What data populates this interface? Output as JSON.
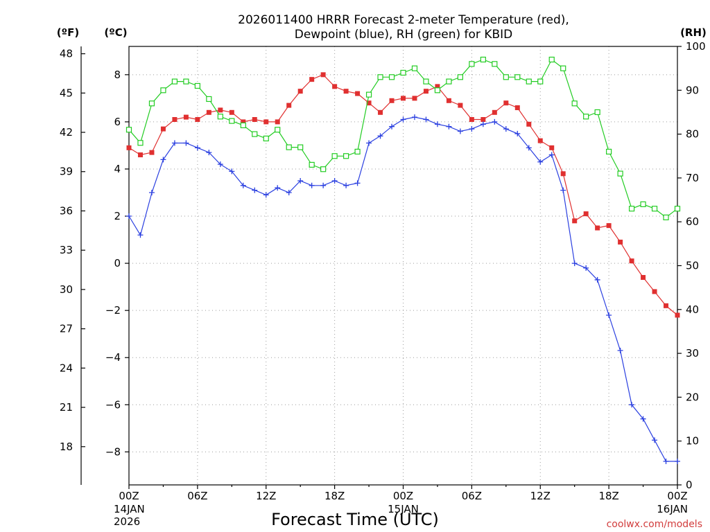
{
  "title_line1": "2026011400 HRRR Forecast 2-meter Temperature (red),",
  "title_line2": "Dewpoint (blue), RH (green) for KBID",
  "xlabel": "Forecast Time (UTC)",
  "credit": "coolwx.com/models",
  "units": {
    "f": "(ºF)",
    "c": "(ºC)",
    "rh": "(RH)"
  },
  "date_labels": [
    {
      "day": "14JAN",
      "year": "2026",
      "hour": 0
    },
    {
      "day": "15JAN",
      "year": "",
      "hour": 24
    },
    {
      "day": "16JAN",
      "year": "",
      "hour": 48
    }
  ],
  "colors": {
    "temperature": "#e03030",
    "dewpoint": "#2a3fe0",
    "rh": "#22cc22"
  },
  "chart_data": {
    "type": "line",
    "title": "2026011400 HRRR Forecast 2-meter Temperature (red), Dewpoint (blue), RH (green) for KBID",
    "xlabel": "Forecast Time (UTC)",
    "x_unit": "forecast hour",
    "xlim": [
      0,
      48
    ],
    "x_ticks": [
      {
        "hour": 0,
        "label": "00Z"
      },
      {
        "hour": 6,
        "label": "06Z"
      },
      {
        "hour": 12,
        "label": "12Z"
      },
      {
        "hour": 18,
        "label": "18Z"
      },
      {
        "hour": 24,
        "label": "00Z"
      },
      {
        "hour": 30,
        "label": "06Z"
      },
      {
        "hour": 36,
        "label": "12Z"
      },
      {
        "hour": 42,
        "label": "18Z"
      },
      {
        "hour": 48,
        "label": "00Z"
      }
    ],
    "y_left_c": {
      "label": "(ºC)",
      "range": [
        -9.4,
        9.2
      ],
      "ticks": [
        -8,
        -6,
        -4,
        -2,
        0,
        2,
        4,
        6,
        8
      ]
    },
    "y_left_f": {
      "label": "(ºF)",
      "ticks": [
        18,
        21,
        24,
        27,
        30,
        33,
        36,
        39,
        42,
        45,
        48
      ]
    },
    "y_right_rh": {
      "label": "(RH)",
      "range": [
        0,
        100
      ],
      "ticks": [
        0,
        10,
        20,
        30,
        40,
        50,
        60,
        70,
        80,
        90,
        100
      ]
    },
    "grid": true,
    "x": [
      0,
      1,
      2,
      3,
      4,
      5,
      6,
      7,
      8,
      9,
      10,
      11,
      12,
      13,
      14,
      15,
      16,
      17,
      18,
      19,
      20,
      21,
      22,
      23,
      24,
      25,
      26,
      27,
      28,
      29,
      30,
      31,
      32,
      33,
      34,
      35,
      36,
      37,
      38,
      39,
      40,
      41,
      42,
      43,
      44,
      45,
      46,
      47,
      48
    ],
    "series": [
      {
        "name": "Temperature",
        "axis": "c",
        "marker": "square-filled",
        "values": [
          4.9,
          4.6,
          4.7,
          5.7,
          6.1,
          6.2,
          6.1,
          6.4,
          6.5,
          6.4,
          6.0,
          6.1,
          6.0,
          6.0,
          6.7,
          7.3,
          7.8,
          8.0,
          7.5,
          7.3,
          7.2,
          6.8,
          6.4,
          6.9,
          7.0,
          7.0,
          7.3,
          7.5,
          6.9,
          6.7,
          6.1,
          6.1,
          6.4,
          6.8,
          6.6,
          5.9,
          5.2,
          4.9,
          3.8,
          1.8,
          2.1,
          1.5,
          1.6,
          0.9,
          0.1,
          -0.6,
          -1.2,
          -1.8,
          -2.2
        ]
      },
      {
        "name": "Dewpoint",
        "axis": "c",
        "marker": "plus",
        "values": [
          2.0,
          1.2,
          3.0,
          4.4,
          5.1,
          5.1,
          4.9,
          4.7,
          4.2,
          3.9,
          3.3,
          3.1,
          2.9,
          3.2,
          3.0,
          3.5,
          3.3,
          3.3,
          3.5,
          3.3,
          3.4,
          5.1,
          5.4,
          5.8,
          6.1,
          6.2,
          6.1,
          5.9,
          5.8,
          5.6,
          5.7,
          5.9,
          6.0,
          5.7,
          5.5,
          4.9,
          4.3,
          4.6,
          3.1,
          0.0,
          -0.2,
          -0.7,
          -2.2,
          -3.7,
          -6.0,
          -6.6,
          -7.5,
          -8.4,
          -8.4
        ]
      },
      {
        "name": "RH",
        "axis": "rh",
        "marker": "square-open",
        "values": [
          81,
          78,
          87,
          90,
          92,
          92,
          91,
          88,
          84,
          83,
          82,
          80,
          79,
          81,
          77,
          77,
          73,
          72,
          75,
          75,
          76,
          89,
          93,
          93,
          94,
          95,
          92,
          90,
          92,
          93,
          96,
          97,
          96,
          93,
          93,
          92,
          92,
          97,
          95,
          87,
          84,
          85,
          76,
          71,
          63,
          64,
          63,
          61,
          63
        ]
      }
    ]
  }
}
